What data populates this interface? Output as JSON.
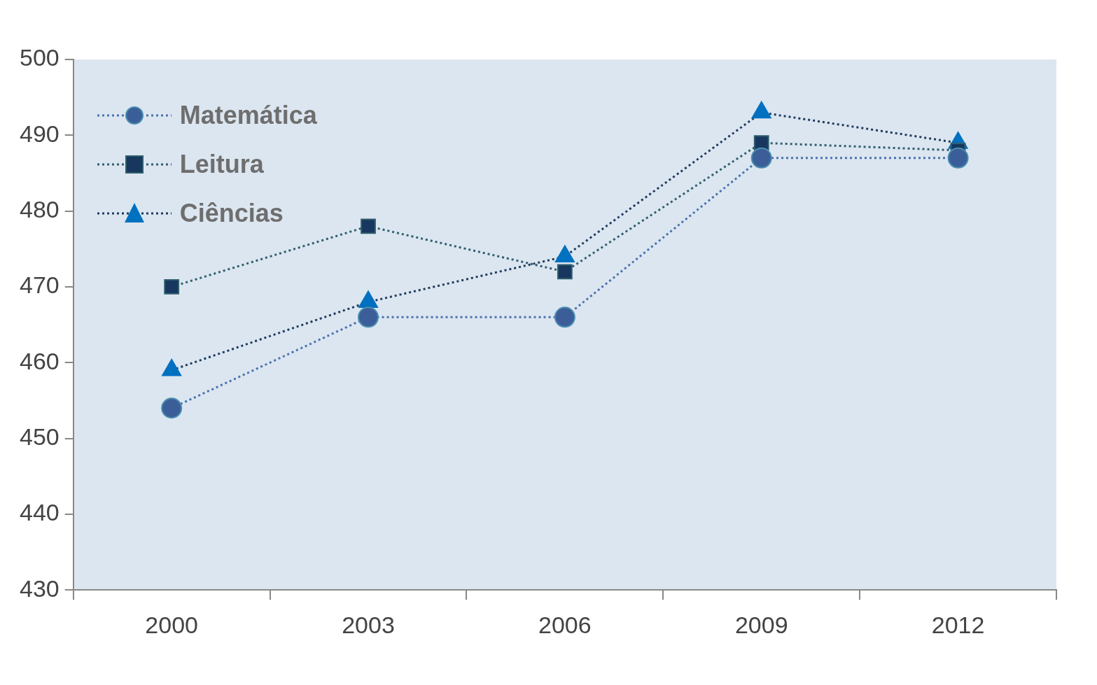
{
  "chart_data": {
    "type": "line",
    "categories": [
      "2000",
      "2003",
      "2006",
      "2009",
      "2012"
    ],
    "series": [
      {
        "name": "Matemática",
        "color": "#3b5e99",
        "marker": "circle",
        "line_style": "dotted",
        "values": [
          454,
          466,
          466,
          487,
          487
        ]
      },
      {
        "name": "Leitura",
        "color": "#17375e",
        "marker": "square",
        "line_style": "dotted",
        "values": [
          470,
          478,
          472,
          489,
          488
        ]
      },
      {
        "name": "Ciências",
        "color": "#0070c0",
        "marker": "triangle",
        "line_style": "dotted",
        "values": [
          459,
          468,
          474,
          493,
          489
        ]
      }
    ],
    "ylim": [
      430,
      500
    ],
    "yticks": [
      430,
      440,
      450,
      460,
      470,
      480,
      490,
      500
    ],
    "grid": false,
    "legend": "upper left"
  }
}
